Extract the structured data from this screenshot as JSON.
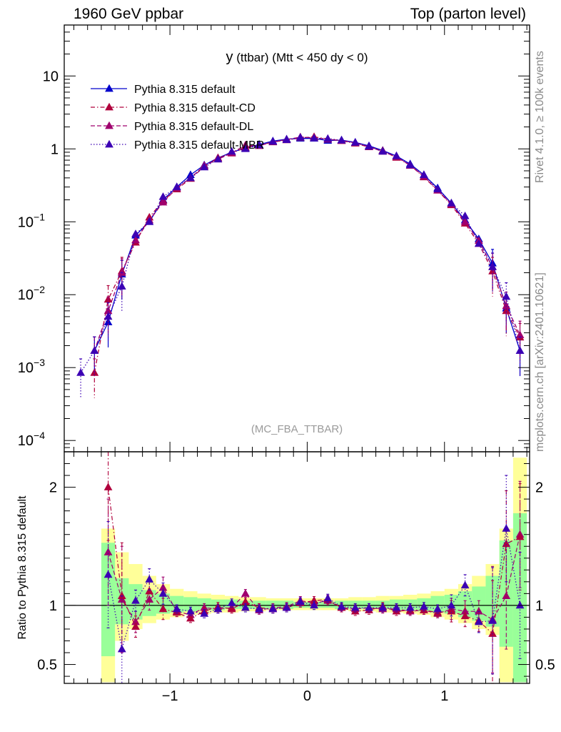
{
  "header": {
    "left": "1960 GeV ppbar",
    "right": "Top (parton level)"
  },
  "side_labels": {
    "rivet": "Rivet 4.1.0, ≥ 100k events",
    "mcplots": "mcplots.cern.ch [arXiv:2401.10621]"
  },
  "colors": {
    "default": "#0000cc",
    "cd": "#b0003c",
    "dl": "#a0006e",
    "mbr": "#3c00b4",
    "band_yellow": "#ffff99",
    "band_green": "#99ff99"
  },
  "chart_data": [
    {
      "type": "line",
      "title_main": "y",
      "title_rest": " (ttbar) (Mtt < 450 dy < 0)",
      "watermark": "(MC_FBA_TTBAR)",
      "xlabel": "",
      "ylabel": "",
      "yscale": "log",
      "xlim": [
        -1.77,
        1.62
      ],
      "ylim": [
        7e-05,
        50
      ],
      "y_ticks": [
        {
          "v": 10,
          "label": "10"
        },
        {
          "v": 1,
          "label": "1"
        },
        {
          "v": 0.1,
          "label": "10",
          "sup": "−1"
        },
        {
          "v": 0.01,
          "label": "10",
          "sup": "−2"
        },
        {
          "v": 0.001,
          "label": "10",
          "sup": "−3"
        },
        {
          "v": 0.0001,
          "label": "10",
          "sup": "−4"
        }
      ],
      "legend_position": "top-left",
      "x": [
        -1.65,
        -1.55,
        -1.45,
        -1.35,
        -1.25,
        -1.15,
        -1.05,
        -0.95,
        -0.85,
        -0.75,
        -0.65,
        -0.55,
        -0.45,
        -0.35,
        -0.25,
        -0.15,
        -0.05,
        0.05,
        0.15,
        0.25,
        0.35,
        0.45,
        0.55,
        0.65,
        0.75,
        0.85,
        0.95,
        1.05,
        1.15,
        1.25,
        1.35,
        1.45,
        1.55
      ],
      "series": [
        {
          "name": "Pythia 8.315 default",
          "style": "solid",
          "color_key": "default",
          "values": [
            null,
            0.0017,
            0.0042,
            0.019,
            0.065,
            0.1,
            0.2,
            0.3,
            0.44,
            0.6,
            0.75,
            0.9,
            1.02,
            1.15,
            1.28,
            1.36,
            1.39,
            1.39,
            1.3,
            1.32,
            1.23,
            1.1,
            0.95,
            0.8,
            0.62,
            0.44,
            0.29,
            0.18,
            0.105,
            0.058,
            0.027,
            0.0065,
            0.0017
          ]
        },
        {
          "name": "Pythia 8.315 default-CD",
          "style": "dashdot",
          "color_key": "cd",
          "values": [
            null,
            0.00085,
            0.0086,
            0.021,
            0.052,
            0.115,
            0.195,
            0.28,
            0.39,
            0.57,
            0.75,
            0.87,
            1.05,
            1.12,
            1.24,
            1.32,
            1.42,
            1.46,
            1.37,
            1.29,
            1.19,
            1.06,
            0.94,
            0.76,
            0.6,
            0.41,
            0.27,
            0.17,
            0.095,
            0.05,
            0.021,
            0.006,
            0.0026
          ]
        },
        {
          "name": "Pythia 8.315 default-DL",
          "style": "dashed",
          "color_key": "dl",
          "values": [
            null,
            0.0017,
            0.006,
            0.02,
            0.056,
            0.105,
            0.185,
            0.29,
            0.4,
            0.59,
            0.72,
            0.88,
            1.12,
            1.1,
            1.25,
            1.34,
            1.45,
            1.42,
            1.35,
            1.3,
            1.21,
            1.07,
            0.92,
            0.78,
            0.59,
            0.42,
            0.27,
            0.175,
            0.1,
            0.055,
            0.024,
            0.007,
            0.0028
          ]
        },
        {
          "name": "Pythia 8.315 default-MBR",
          "style": "dotted",
          "color_key": "mbr",
          "values": [
            0.00085,
            0.0017,
            0.005,
            0.013,
            0.068,
            0.1,
            0.22,
            0.3,
            0.4,
            0.56,
            0.72,
            0.92,
            1.0,
            1.13,
            1.26,
            1.33,
            1.43,
            1.4,
            1.38,
            1.31,
            1.22,
            1.08,
            0.92,
            0.8,
            0.6,
            0.44,
            0.28,
            0.18,
            0.12,
            0.05,
            0.024,
            0.0094,
            0.0017
          ]
        }
      ]
    },
    {
      "type": "line",
      "ylabel": "Ratio to Pythia 8.315 default",
      "yscale": "linear",
      "xlim": [
        -1.77,
        1.62
      ],
      "ylim": [
        0.34,
        2.3
      ],
      "y_ticks": [
        {
          "v": 0.5,
          "label": "0.5"
        },
        {
          "v": 1,
          "label": "1"
        },
        {
          "v": 2,
          "label": "2"
        }
      ],
      "x_ticks": [
        {
          "v": -1,
          "label": "−1"
        },
        {
          "v": 0,
          "label": "0"
        },
        {
          "v": 1,
          "label": "1"
        }
      ],
      "reference_line": 1,
      "bin_edges": [
        -1.5,
        -1.4,
        -1.3,
        -1.2,
        -1.1,
        -1.0,
        -0.9,
        -0.8,
        -0.7,
        -0.6,
        -0.5,
        -0.4,
        -0.3,
        -0.2,
        -0.1,
        0.0,
        0.1,
        0.2,
        0.3,
        0.4,
        0.5,
        0.6,
        0.7,
        0.8,
        0.9,
        1.0,
        1.1,
        1.2,
        1.3,
        1.4,
        1.5,
        1.6
      ],
      "band_yellow": [
        [
          0.35,
          1.65
        ],
        [
          0.7,
          1.45
        ],
        [
          0.8,
          1.35
        ],
        [
          0.85,
          1.25
        ],
        [
          0.88,
          1.18
        ],
        [
          0.9,
          1.14
        ],
        [
          0.92,
          1.12
        ],
        [
          0.93,
          1.1
        ],
        [
          0.94,
          1.09
        ],
        [
          0.94,
          1.08
        ],
        [
          0.95,
          1.07
        ],
        [
          0.95,
          1.07
        ],
        [
          0.96,
          1.06
        ],
        [
          0.96,
          1.06
        ],
        [
          0.96,
          1.06
        ],
        [
          0.96,
          1.06
        ],
        [
          0.96,
          1.06
        ],
        [
          0.96,
          1.06
        ],
        [
          0.95,
          1.07
        ],
        [
          0.95,
          1.07
        ],
        [
          0.94,
          1.08
        ],
        [
          0.94,
          1.08
        ],
        [
          0.93,
          1.09
        ],
        [
          0.92,
          1.1
        ],
        [
          0.9,
          1.12
        ],
        [
          0.88,
          1.14
        ],
        [
          0.85,
          1.18
        ],
        [
          0.8,
          1.25
        ],
        [
          0.75,
          1.35
        ],
        [
          0.35,
          1.65
        ],
        [
          0.35,
          2.25
        ]
      ],
      "band_green": [
        [
          0.57,
          1.53
        ],
        [
          0.84,
          1.23
        ],
        [
          0.88,
          1.18
        ],
        [
          0.91,
          1.13
        ],
        [
          0.93,
          1.1
        ],
        [
          0.94,
          1.08
        ],
        [
          0.95,
          1.07
        ],
        [
          0.96,
          1.06
        ],
        [
          0.96,
          1.05
        ],
        [
          0.97,
          1.05
        ],
        [
          0.97,
          1.04
        ],
        [
          0.97,
          1.04
        ],
        [
          0.97,
          1.04
        ],
        [
          0.97,
          1.04
        ],
        [
          0.98,
          1.03
        ],
        [
          0.98,
          1.03
        ],
        [
          0.98,
          1.03
        ],
        [
          0.97,
          1.04
        ],
        [
          0.97,
          1.04
        ],
        [
          0.97,
          1.04
        ],
        [
          0.97,
          1.04
        ],
        [
          0.96,
          1.05
        ],
        [
          0.96,
          1.05
        ],
        [
          0.95,
          1.06
        ],
        [
          0.94,
          1.08
        ],
        [
          0.93,
          1.09
        ],
        [
          0.9,
          1.12
        ],
        [
          0.87,
          1.16
        ],
        [
          0.82,
          1.25
        ],
        [
          0.65,
          1.55
        ],
        [
          0.35,
          1.78
        ]
      ],
      "x": [
        -1.45,
        -1.35,
        -1.25,
        -1.15,
        -1.05,
        -0.95,
        -0.85,
        -0.75,
        -0.65,
        -0.55,
        -0.45,
        -0.35,
        -0.25,
        -0.15,
        -0.05,
        0.05,
        0.15,
        0.25,
        0.35,
        0.45,
        0.55,
        0.65,
        0.75,
        0.85,
        0.95,
        1.05,
        1.15,
        1.25,
        1.35,
        1.45,
        1.55
      ],
      "series": [
        {
          "name": "default-CD",
          "style": "dashdot",
          "color_key": "cd",
          "values": [
            2.0,
            1.08,
            0.82,
            1.12,
            0.97,
            0.94,
            0.89,
            0.95,
            0.99,
            0.97,
            1.03,
            0.98,
            0.97,
            0.98,
            1.02,
            1.04,
            1.05,
            0.98,
            0.95,
            0.96,
            0.99,
            0.95,
            0.96,
            0.96,
            0.94,
            0.95,
            0.91,
            0.87,
            0.76,
            1.52,
            1.58
          ]
        },
        {
          "name": "default-DL",
          "style": "dashed",
          "color_key": "dl",
          "values": [
            1.45,
            1.05,
            0.86,
            1.05,
            1.15,
            0.95,
            0.92,
            0.98,
            0.97,
            0.98,
            1.1,
            0.96,
            0.98,
            0.99,
            1.04,
            1.02,
            1.04,
            0.98,
            0.97,
            0.98,
            0.97,
            0.97,
            0.95,
            0.96,
            0.93,
            0.97,
            0.95,
            0.95,
            0.88,
            1.08,
            1.6
          ]
        },
        {
          "name": "default-MBR",
          "style": "dotted",
          "color_key": "mbr",
          "values": [
            1.26,
            0.63,
            1.04,
            1.22,
            1.1,
            0.97,
            0.95,
            0.93,
            0.97,
            1.02,
            0.98,
            0.97,
            0.97,
            0.98,
            1.03,
            1.0,
            1.06,
            0.99,
            0.98,
            0.98,
            0.98,
            0.98,
            0.98,
            0.99,
            0.97,
            1.0,
            1.17,
            0.86,
            0.87,
            1.65,
            1.0
          ]
        }
      ]
    }
  ]
}
